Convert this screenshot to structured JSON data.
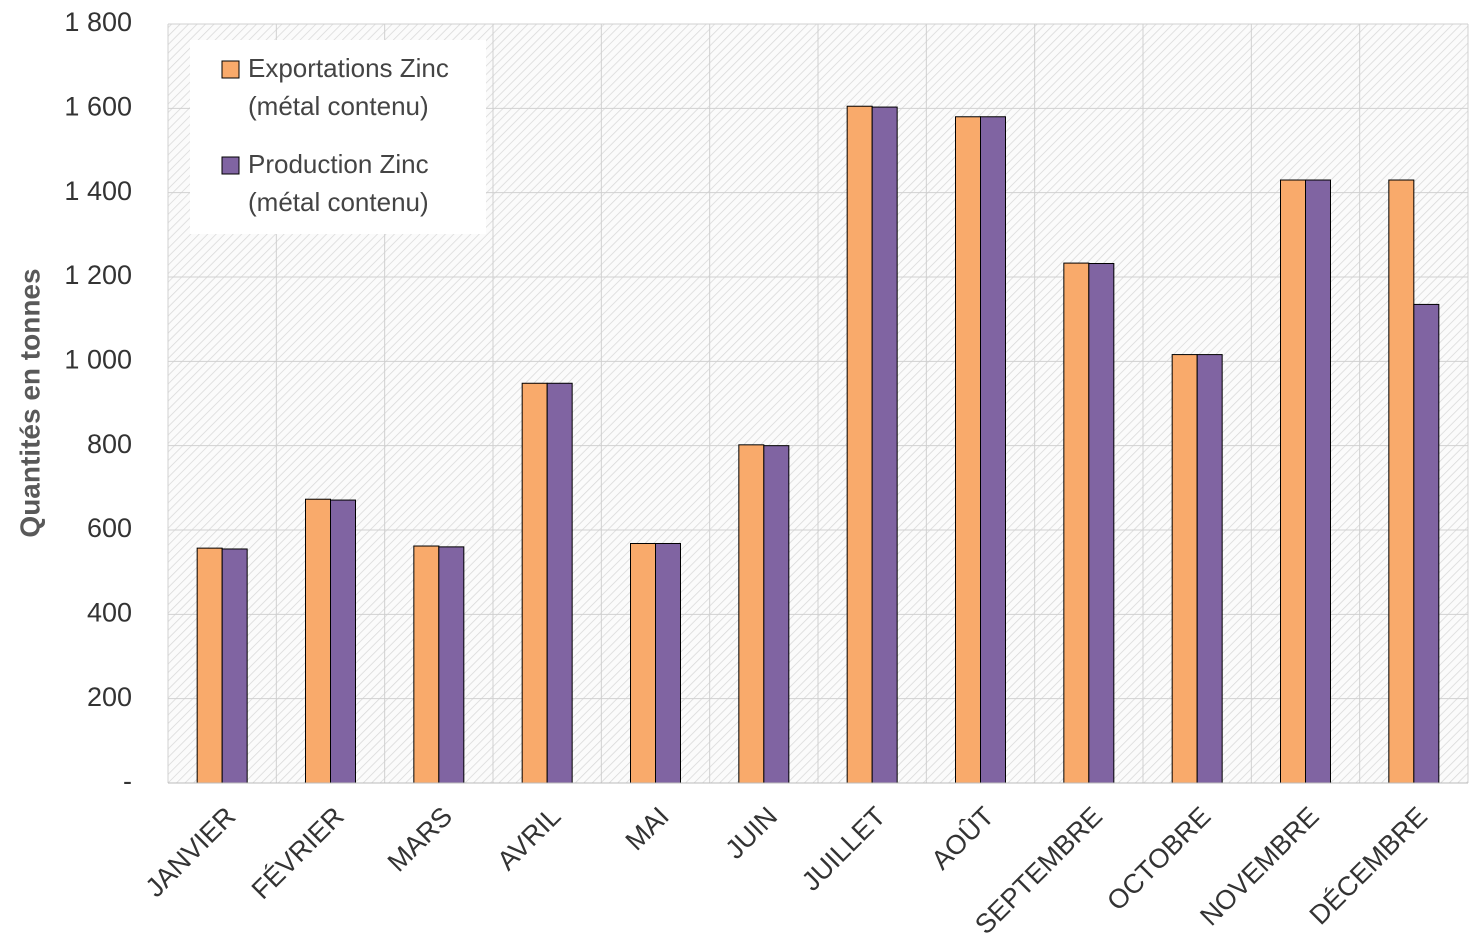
{
  "chart_data": {
    "type": "bar",
    "y_label": "Quantités en tonnes",
    "categories": [
      "JANVIER",
      "FÉVRIER",
      "MARS",
      "AVRIL",
      "MAI",
      "JUIN",
      "JUILLET",
      "AOÛT",
      "SEPTEMBRE",
      "OCTOBRE",
      "NOVEMBRE",
      "DÉCEMBRE"
    ],
    "series": [
      {
        "name": "Exportations Zinc (métal contenu)",
        "color": "#f9aa6b",
        "values": [
          557,
          673,
          562,
          948,
          568,
          802,
          1605,
          1580,
          1233,
          1016,
          1430,
          1430
        ]
      },
      {
        "name": "Production  Zinc (métal contenu)",
        "color": "#8064a2",
        "values": [
          555,
          671,
          560,
          948,
          568,
          800,
          1603,
          1580,
          1232,
          1016,
          1430,
          1135
        ]
      }
    ],
    "ylim": [
      0,
      1800
    ],
    "yticks": [
      {
        "value": 0,
        "label": "-"
      },
      200,
      400,
      600,
      800,
      {
        "value": 1000,
        "label": "1 000"
      },
      {
        "value": 1200,
        "label": "1 200"
      },
      {
        "value": 1400,
        "label": "1 400"
      },
      {
        "value": 1600,
        "label": "1 600"
      },
      {
        "value": 1800,
        "label": "1 800"
      }
    ],
    "grid": true,
    "legend": "upper left"
  }
}
